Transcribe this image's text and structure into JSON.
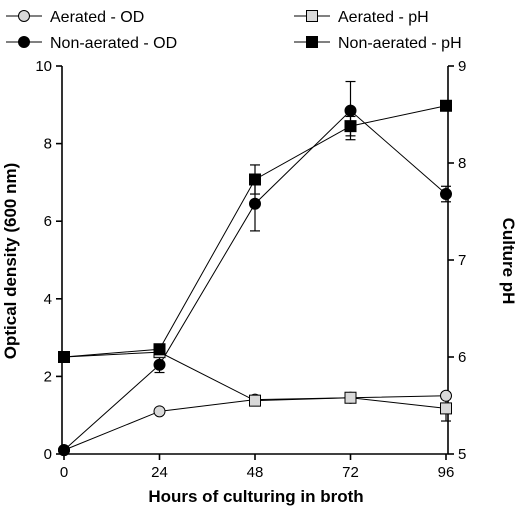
{
  "chart_data": {
    "type": "line",
    "xlabel": "Hours of culturing in broth",
    "ylabel": "Optical density (600 nm)",
    "y2label": "Culture pH",
    "x_ticks": [
      0,
      24,
      48,
      72,
      96
    ],
    "xlim": [
      0,
      96
    ],
    "ylim": [
      0,
      10
    ],
    "y_ticks": [
      0,
      2,
      4,
      6,
      8,
      10
    ],
    "y2lim": [
      5,
      9
    ],
    "y2_ticks": [
      5,
      6,
      7,
      8,
      9
    ],
    "grid": false,
    "legend_placement": "top",
    "series": [
      {
        "name": "Aerated - OD",
        "axis": "left",
        "marker": "circle",
        "fill": "#d9d9d9",
        "x": [
          0,
          24,
          48,
          72,
          96
        ],
        "y": [
          0.1,
          1.1,
          1.4,
          1.45,
          1.5
        ],
        "err": [
          0,
          0.05,
          0.05,
          0.05,
          0.08
        ]
      },
      {
        "name": "Non-aerated - OD",
        "axis": "left",
        "marker": "circle",
        "fill": "#000000",
        "x": [
          0,
          24,
          48,
          72,
          96
        ],
        "y": [
          0.1,
          2.3,
          6.45,
          8.85,
          6.7
        ],
        "err": [
          0,
          0.2,
          0.7,
          0.75,
          0.2
        ]
      },
      {
        "name": "Aerated - pH",
        "axis": "right",
        "marker": "square",
        "fill": "#d9d9d9",
        "x": [
          0,
          24,
          48,
          72,
          96
        ],
        "y": [
          6.0,
          6.05,
          5.55,
          5.58,
          5.47
        ],
        "err": [
          0,
          0.03,
          0.02,
          0.02,
          0.13
        ]
      },
      {
        "name": "Non-aerated - pH",
        "axis": "right",
        "marker": "square",
        "fill": "#000000",
        "x": [
          0,
          24,
          48,
          72,
          96
        ],
        "y": [
          6.0,
          6.08,
          7.83,
          8.38,
          8.59
        ],
        "err": [
          0,
          0.02,
          0.15,
          0.1,
          0.02
        ]
      }
    ]
  }
}
